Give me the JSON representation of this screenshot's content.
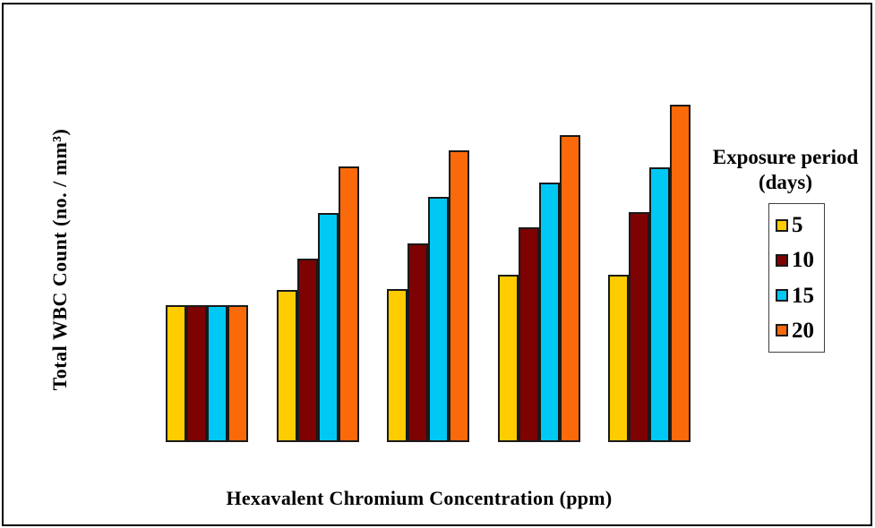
{
  "chart_data": {
    "type": "bar",
    "title": "",
    "xlabel": "Hexavalent Chromium Concentration (ppm)",
    "ylabel": "Total WBC Count (no. / mm³)",
    "categories": [
      "",
      "",
      "",
      "",
      ""
    ],
    "categories_note": "5 concentration groups along x-axis; no tick labels are visible in the image",
    "series": [
      {
        "name": "5",
        "color": "#FFCC00",
        "values": [
          153,
          170,
          171,
          187,
          187
        ]
      },
      {
        "name": "10",
        "color": "#7E0201",
        "values": [
          153,
          205,
          222,
          240,
          257
        ]
      },
      {
        "name": "15",
        "color": "#00C8F5",
        "values": [
          153,
          256,
          274,
          290,
          307
        ]
      },
      {
        "name": "20",
        "color": "#FA6A0A",
        "values": [
          153,
          308,
          326,
          343,
          377
        ]
      }
    ],
    "value_scale": "relative bar height in pixels; no numeric y-axis scale is shown in the image",
    "ylim": [
      0,
      400
    ],
    "grid": false,
    "axes_lines_visible": false,
    "bar_outline_color": "#1a1a1a",
    "legend": {
      "title": "Exposure period (days)",
      "position": "right",
      "entries": [
        "5",
        "10",
        "15",
        "20"
      ]
    }
  }
}
